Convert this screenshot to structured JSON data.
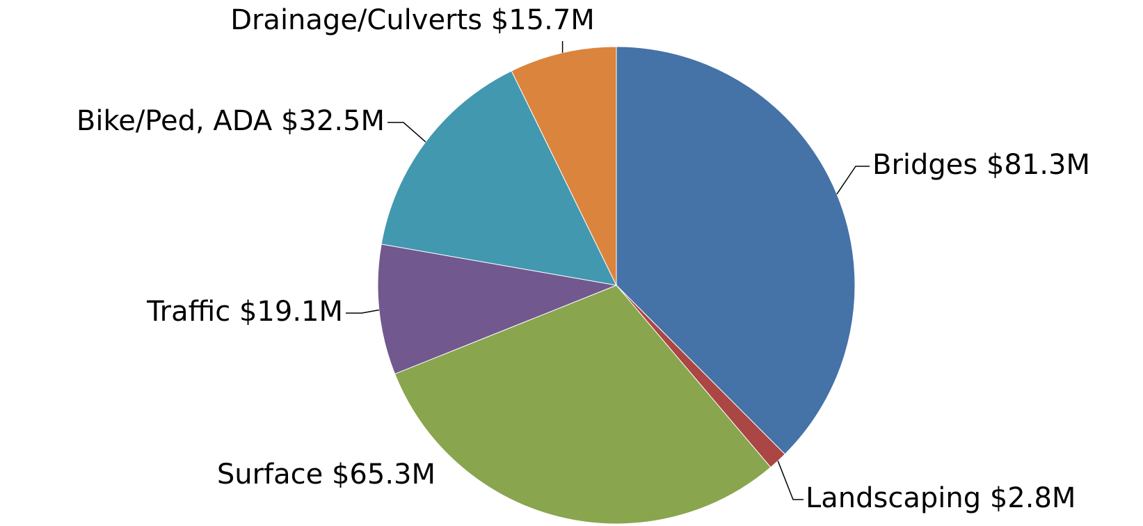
{
  "chart_data": {
    "type": "pie",
    "categories": [
      "Bridges",
      "Landscaping",
      "Surface",
      "Traffic",
      "Bike/Ped, ADA",
      "Drainage/Culverts"
    ],
    "values": [
      81.3,
      2.8,
      65.3,
      19.1,
      32.5,
      15.7
    ],
    "value_labels": [
      "$81.3M",
      "$2.8M",
      "$65.3M",
      "$19.1M",
      "$32.5M",
      "$15.7M"
    ],
    "colors": [
      "#4572a7",
      "#aa4643",
      "#89a54e",
      "#71588f",
      "#4198af",
      "#db843d"
    ]
  }
}
